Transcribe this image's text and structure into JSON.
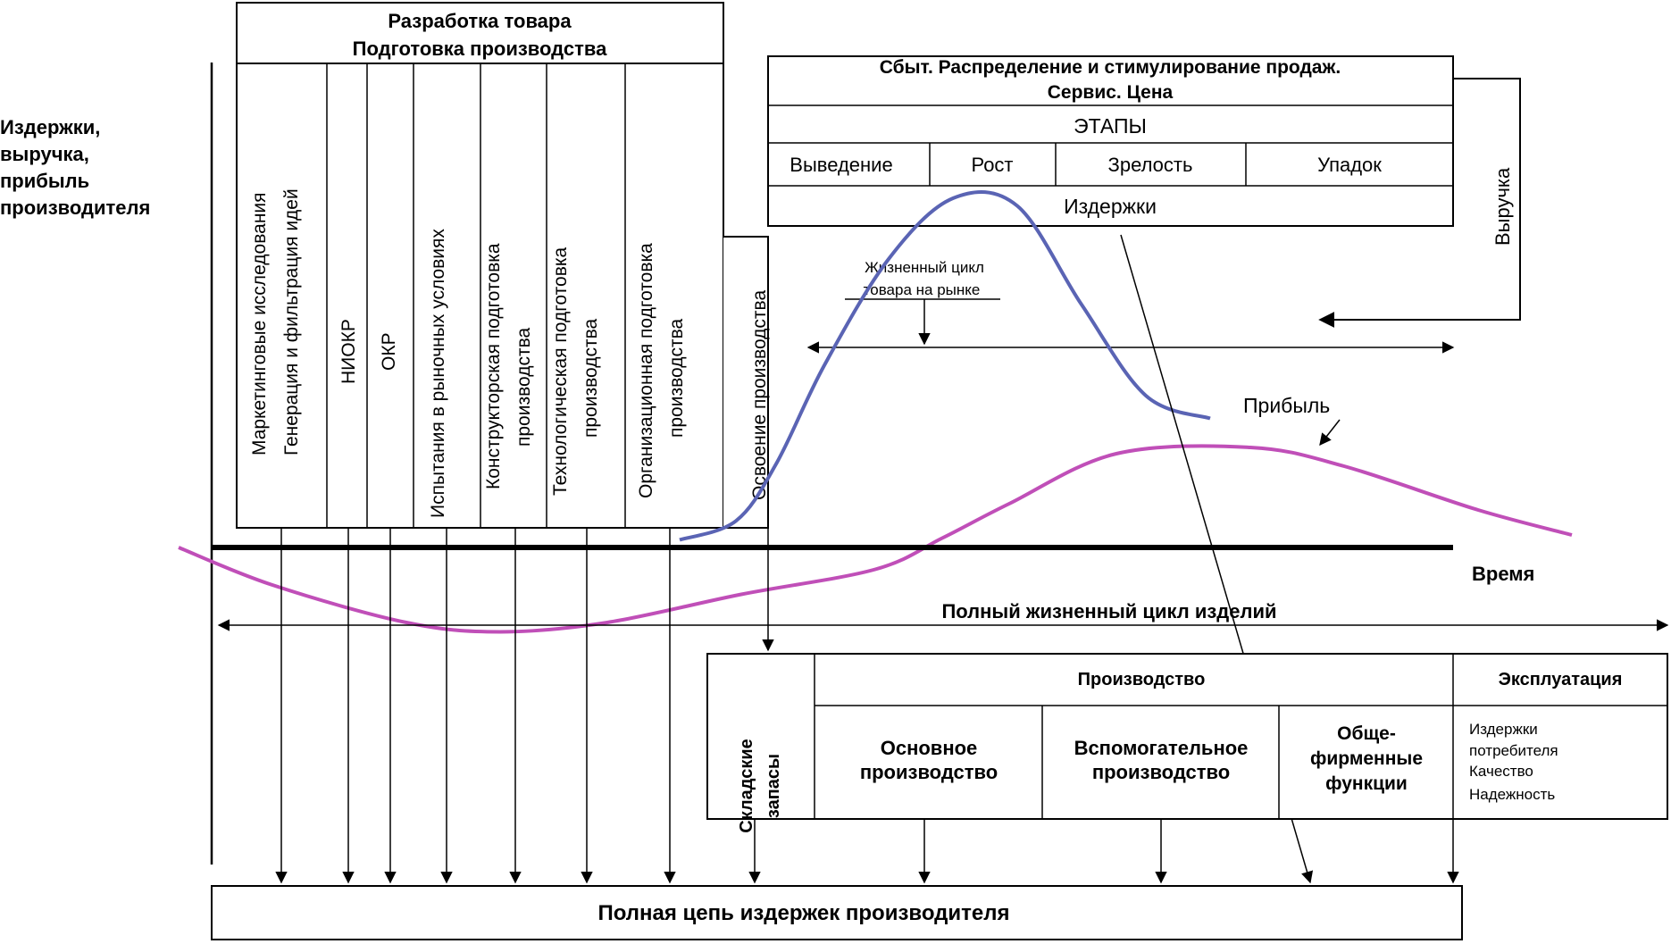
{
  "y_axis_label": [
    "Издержки,",
    "выручка,",
    "прибыль",
    "производителя"
  ],
  "dev_block": {
    "title": [
      "Разработка товара",
      "Подготовка производства"
    ],
    "columns": [
      [
        "Маркетинговые исследования",
        "Генерация и фильтрация идей"
      ],
      [
        "НИОКР"
      ],
      [
        "ОКР"
      ],
      [
        "Испытания в рыночных условиях"
      ],
      [
        "Конструкторская подготовка",
        "производства"
      ],
      [
        "Технологическая подготовка",
        "производства"
      ],
      [
        "Организационная подготовка",
        "производства"
      ]
    ],
    "mastering": "Освоение производства"
  },
  "market_block": {
    "title": [
      "Сбыт. Распределение и стимулирование продаж.",
      "Сервис. Цена"
    ],
    "stages_label": "ЭТАПЫ",
    "stages": [
      "Выведение",
      "Рост",
      "Зрелость",
      "Упадок"
    ],
    "costs_label": "Издержки",
    "revenue_label": "Выручка"
  },
  "curves": {
    "revenue_color": "#5a64b4",
    "profit_color": "#c04fb8",
    "profit_label": "Прибыль",
    "revenue_points": [
      [
        -0.3,
        0.1
      ],
      [
        0.05,
        0.35
      ],
      [
        0.3,
        1.1
      ],
      [
        0.6,
        2.4
      ],
      [
        1.0,
        3.8
      ],
      [
        1.4,
        4.6
      ],
      [
        1.8,
        4.5
      ],
      [
        2.2,
        3.2
      ],
      [
        2.6,
        2.0
      ],
      [
        3.0,
        1.7
      ]
    ],
    "profit_points": [
      [
        -5.2,
        0.0
      ],
      [
        -4.5,
        -0.6
      ],
      [
        -3.5,
        -1.2
      ],
      [
        -2.8,
        -1.35
      ],
      [
        -2.0,
        -1.2
      ],
      [
        -1.0,
        -0.75
      ],
      [
        0.0,
        -0.35
      ],
      [
        0.5,
        0.15
      ],
      [
        1.0,
        0.7
      ],
      [
        1.8,
        1.5
      ],
      [
        2.8,
        1.6
      ],
      [
        3.5,
        1.3
      ],
      [
        4.5,
        0.6
      ],
      [
        5.2,
        0.2
      ]
    ]
  },
  "lifecycle_market_label": [
    "Жизненный цикл",
    "товара на рынке"
  ],
  "time_label": "Время",
  "full_lifecycle_label": "Полный жизненный цикл изделий",
  "prod_block": {
    "stock": [
      "Складские",
      "запасы"
    ],
    "production": "Производство",
    "main": [
      "Основное",
      "производство"
    ],
    "aux": [
      "Вспомогательное",
      "производство"
    ],
    "general": [
      "Обще-",
      "фирменные",
      "функции"
    ],
    "operation": "Эксплуатация",
    "operation_items": [
      "Издержки",
      "потребителя",
      "Качество",
      "Надежность"
    ]
  },
  "footer": "Полная цепь издержек производителя"
}
